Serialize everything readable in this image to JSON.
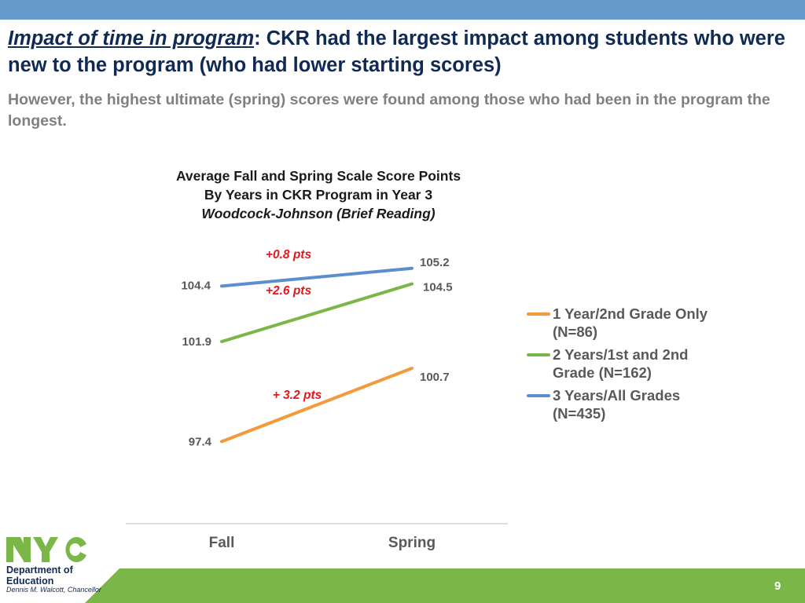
{
  "header": {
    "title_em": "Impact of time in program",
    "title_rest": ": CKR had the largest impact among students who were new to the program (who had lower starting scores)",
    "subtitle": "However, the highest ultimate (spring) scores were found among those who had been in the program the longest."
  },
  "chart_data": {
    "type": "line",
    "title_lines": [
      "Average Fall and Spring Scale Score Points",
      "By Years in CKR Program in Year 3",
      "Woodcock-Johnson (Brief Reading)"
    ],
    "categories": [
      "Fall",
      "Spring"
    ],
    "series": [
      {
        "name": "1 Year/2nd Grade Only (N=86)",
        "color": "#f59a3a",
        "values": [
          97.4,
          100.7
        ],
        "labels": [
          "97.4",
          "100.7"
        ],
        "change_label": "+ 3.2 pts"
      },
      {
        "name": "2 Years/1st and 2nd Grade (N=162)",
        "color": "#7ab648",
        "values": [
          101.9,
          104.5
        ],
        "labels": [
          "101.9",
          "104.5"
        ],
        "change_label": "+2.6 pts"
      },
      {
        "name": "3 Years/All Grades (N=435)",
        "color": "#5b8ed0",
        "values": [
          104.4,
          105.2
        ],
        "labels": [
          "104.4",
          "105.2"
        ],
        "change_label": "+0.8 pts"
      }
    ],
    "ylim": [
      93.7,
      106.5
    ],
    "grid": false,
    "legend_position": "right",
    "annotation_color": "#e8161b"
  },
  "legend": {
    "items": [
      {
        "line1": "1 Year/2nd Grade Only",
        "line2": "(N=86)",
        "color": "#f59a3a"
      },
      {
        "line1": "2 Years/1st and 2nd",
        "line2": "Grade (N=162)",
        "color": "#7ab648"
      },
      {
        "line1": "3 Years/All Grades",
        "line2": "(N=435)",
        "color": "#5b8ed0"
      }
    ]
  },
  "footer": {
    "logo": "NYC",
    "org_line1": "Department of",
    "org_line2": "Education",
    "chancellor": "Dennis M. Walcott, Chancellor",
    "page_number": "9",
    "band_color": "#7ab648"
  }
}
